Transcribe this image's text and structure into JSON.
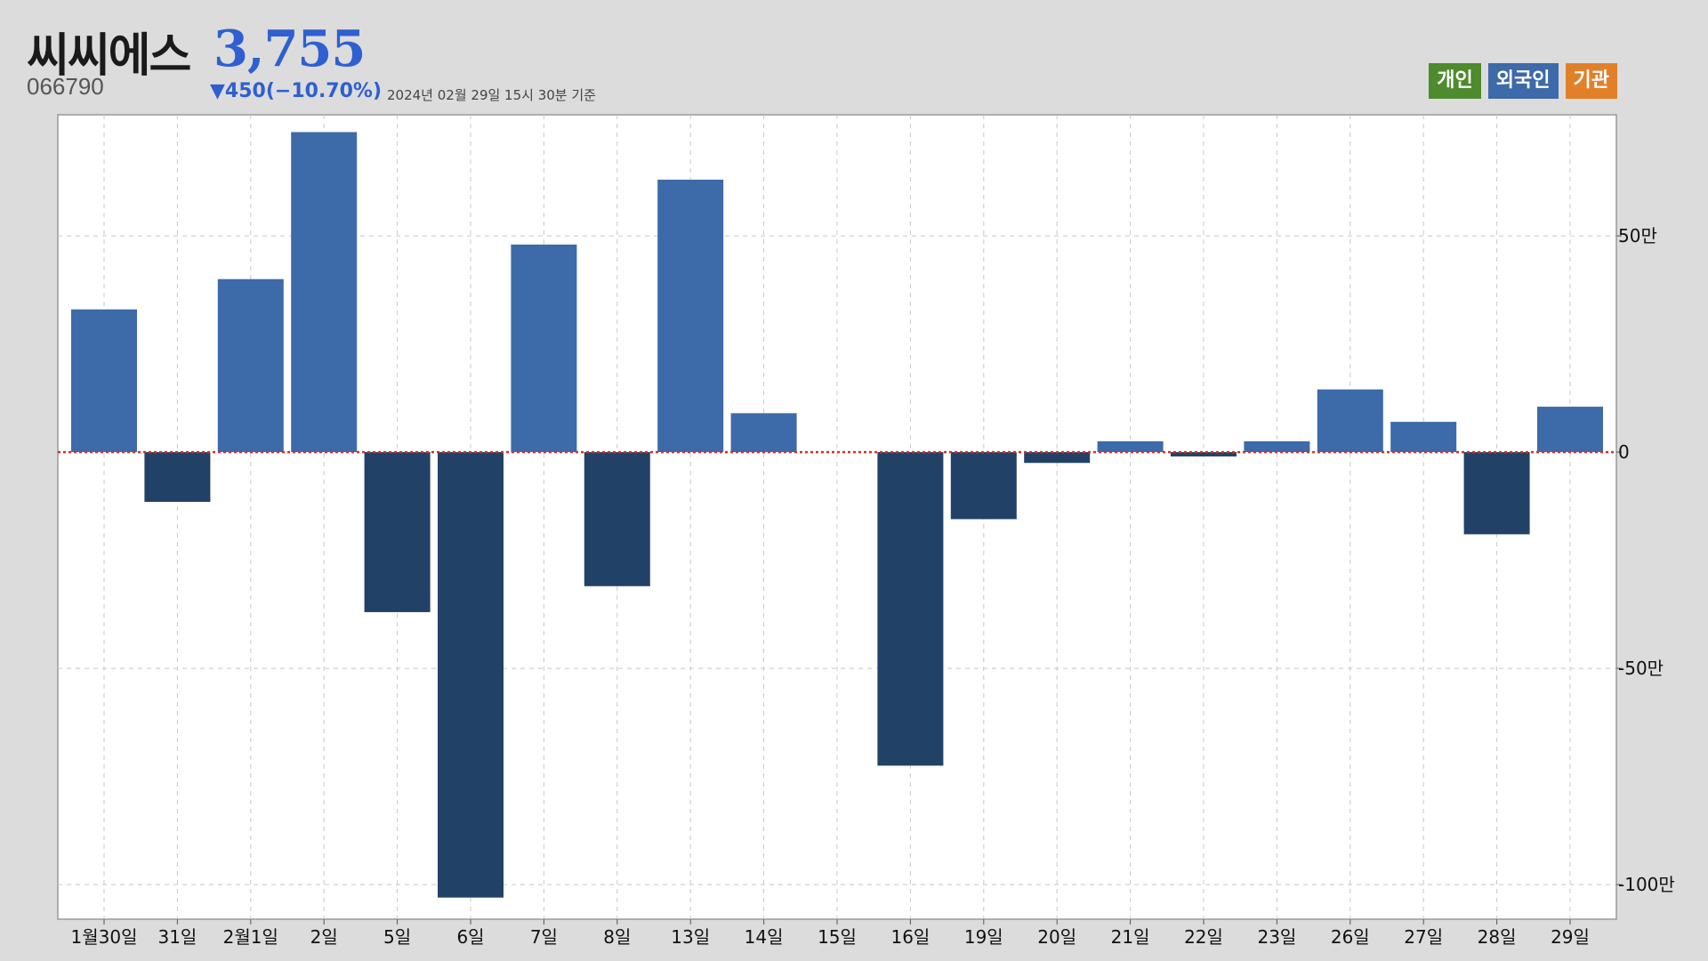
{
  "header": {
    "stock_name": "씨씨에스",
    "price": "3,755",
    "code": "066790",
    "change": "▼450(−10.70%)",
    "timestamp": "2024년 02월 29일 15시 30분 기준"
  },
  "legend": {
    "individual": "개인",
    "foreign": "외국인",
    "institution": "기관"
  },
  "colors": {
    "individual": "#4e8a2e",
    "foreign_positive": "#3d6aa8",
    "foreign_negative": "#224166",
    "institution": "#e2802a",
    "zero_line": "#d0312d",
    "price": "#2f5fd0"
  },
  "chart_data": {
    "type": "bar",
    "series_name": "외국인",
    "categories": [
      "1월30일",
      "31일",
      "2월1일",
      "2일",
      "5일",
      "6일",
      "7일",
      "8일",
      "13일",
      "14일",
      "15일",
      "16일",
      "19일",
      "20일",
      "21일",
      "22일",
      "23일",
      "26일",
      "27일",
      "28일",
      "29일"
    ],
    "values": [
      330000,
      -115000,
      400000,
      740000,
      -370000,
      -1030000,
      480000,
      -310000,
      630000,
      90000,
      0,
      -725000,
      -155000,
      -25000,
      25000,
      -10000,
      25000,
      145000,
      70000,
      -190000,
      105000
    ],
    "ylim": [
      -1080000,
      780000
    ],
    "y_ticks": [
      {
        "value": 500000,
        "label": "50만"
      },
      {
        "value": 0,
        "label": "0"
      },
      {
        "value": -500000,
        "label": "-50만"
      },
      {
        "value": -1000000,
        "label": "-100만"
      }
    ],
    "grid": true
  }
}
